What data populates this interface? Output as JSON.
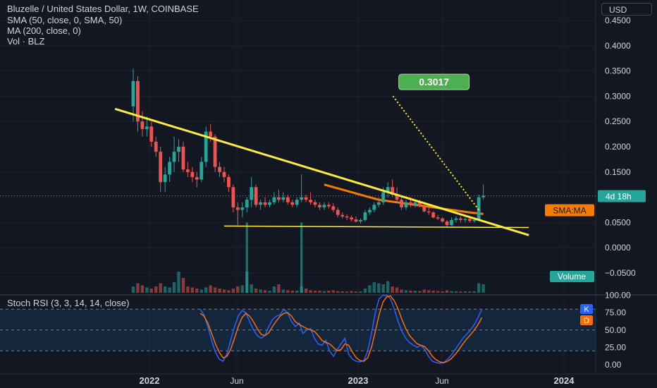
{
  "header": {
    "title": "Bluzelle / United States Dollar, 1W, COINBASE",
    "indicators": [
      "SMA (50, close, 0, SMA, 50)",
      "MA (200, close, 0)",
      "Vol · BLZ"
    ],
    "currency_button": "USD"
  },
  "rsi": {
    "legend": "Stoch RSI (3, 3, 14, 14, close)",
    "k_label": "K",
    "d_label": "D"
  },
  "colors": {
    "background": "#131722",
    "up": "#26a69a",
    "down": "#ef5350",
    "trendline": "#ffeb3b",
    "ma": "#f57c00",
    "target": "#4caf50",
    "k_line": "#2962ff",
    "d_line": "#ff6d00"
  },
  "chart_data": [
    {
      "type": "candlestick",
      "symbol": "Bluzelle / United States Dollar",
      "timeframe": "1W",
      "exchange": "COINBASE",
      "x_ticks": [
        "2022",
        "Jun",
        "2023",
        "Jun",
        "2024"
      ],
      "y_ticks": [
        "0.4500",
        "0.4000",
        "0.3500",
        "0.3000",
        "0.2500",
        "0.2000",
        "0.1500",
        "0.1000",
        "0.0500",
        "0.0000",
        "−0.0500"
      ],
      "ylim": [
        -0.06,
        0.46
      ],
      "price_labels": {
        "countdown": "4d 18h",
        "ma_label": "SMA:MA",
        "volume_label": "Volume"
      },
      "candles": [
        {
          "o": 0.28,
          "h": 0.355,
          "l": 0.25,
          "c": 0.33
        },
        {
          "o": 0.33,
          "h": 0.34,
          "l": 0.23,
          "c": 0.25
        },
        {
          "o": 0.25,
          "h": 0.27,
          "l": 0.22,
          "c": 0.235
        },
        {
          "o": 0.235,
          "h": 0.26,
          "l": 0.22,
          "c": 0.24
        },
        {
          "o": 0.24,
          "h": 0.25,
          "l": 0.2,
          "c": 0.21
        },
        {
          "o": 0.21,
          "h": 0.22,
          "l": 0.18,
          "c": 0.19
        },
        {
          "o": 0.19,
          "h": 0.2,
          "l": 0.11,
          "c": 0.13
        },
        {
          "o": 0.13,
          "h": 0.16,
          "l": 0.11,
          "c": 0.145
        },
        {
          "o": 0.145,
          "h": 0.18,
          "l": 0.13,
          "c": 0.17
        },
        {
          "o": 0.17,
          "h": 0.22,
          "l": 0.15,
          "c": 0.19
        },
        {
          "o": 0.19,
          "h": 0.215,
          "l": 0.17,
          "c": 0.2
        },
        {
          "o": 0.2,
          "h": 0.21,
          "l": 0.15,
          "c": 0.155
        },
        {
          "o": 0.155,
          "h": 0.17,
          "l": 0.14,
          "c": 0.15
        },
        {
          "o": 0.15,
          "h": 0.16,
          "l": 0.13,
          "c": 0.14
        },
        {
          "o": 0.14,
          "h": 0.15,
          "l": 0.12,
          "c": 0.135
        },
        {
          "o": 0.135,
          "h": 0.18,
          "l": 0.13,
          "c": 0.17
        },
        {
          "o": 0.17,
          "h": 0.24,
          "l": 0.16,
          "c": 0.23
        },
        {
          "o": 0.23,
          "h": 0.245,
          "l": 0.21,
          "c": 0.22
        },
        {
          "o": 0.22,
          "h": 0.225,
          "l": 0.15,
          "c": 0.16
        },
        {
          "o": 0.16,
          "h": 0.17,
          "l": 0.14,
          "c": 0.15
        },
        {
          "o": 0.15,
          "h": 0.16,
          "l": 0.13,
          "c": 0.14
        },
        {
          "o": 0.14,
          "h": 0.145,
          "l": 0.11,
          "c": 0.12
        },
        {
          "o": 0.12,
          "h": 0.125,
          "l": 0.07,
          "c": 0.08
        },
        {
          "o": 0.08,
          "h": 0.09,
          "l": 0.045,
          "c": 0.075
        },
        {
          "o": 0.075,
          "h": 0.09,
          "l": 0.06,
          "c": 0.08
        },
        {
          "o": 0.08,
          "h": 0.1,
          "l": 0.07,
          "c": 0.095
        },
        {
          "o": 0.095,
          "h": 0.14,
          "l": 0.08,
          "c": 0.12
        },
        {
          "o": 0.12,
          "h": 0.125,
          "l": 0.08,
          "c": 0.085
        },
        {
          "o": 0.085,
          "h": 0.095,
          "l": 0.075,
          "c": 0.09
        },
        {
          "o": 0.09,
          "h": 0.1,
          "l": 0.08,
          "c": 0.085
        },
        {
          "o": 0.085,
          "h": 0.095,
          "l": 0.08,
          "c": 0.09
        },
        {
          "o": 0.09,
          "h": 0.11,
          "l": 0.085,
          "c": 0.1
        },
        {
          "o": 0.1,
          "h": 0.115,
          "l": 0.09,
          "c": 0.095
        },
        {
          "o": 0.095,
          "h": 0.11,
          "l": 0.09,
          "c": 0.1
        },
        {
          "o": 0.1,
          "h": 0.105,
          "l": 0.085,
          "c": 0.09
        },
        {
          "o": 0.09,
          "h": 0.095,
          "l": 0.08,
          "c": 0.085
        },
        {
          "o": 0.085,
          "h": 0.1,
          "l": 0.08,
          "c": 0.095
        },
        {
          "o": 0.095,
          "h": 0.145,
          "l": 0.09,
          "c": 0.1
        },
        {
          "o": 0.1,
          "h": 0.105,
          "l": 0.09,
          "c": 0.095
        },
        {
          "o": 0.095,
          "h": 0.11,
          "l": 0.085,
          "c": 0.09
        },
        {
          "o": 0.09,
          "h": 0.095,
          "l": 0.08,
          "c": 0.085
        },
        {
          "o": 0.085,
          "h": 0.09,
          "l": 0.075,
          "c": 0.08
        },
        {
          "o": 0.08,
          "h": 0.09,
          "l": 0.075,
          "c": 0.085
        },
        {
          "o": 0.085,
          "h": 0.09,
          "l": 0.078,
          "c": 0.082
        },
        {
          "o": 0.082,
          "h": 0.088,
          "l": 0.07,
          "c": 0.075
        },
        {
          "o": 0.075,
          "h": 0.08,
          "l": 0.06,
          "c": 0.065
        },
        {
          "o": 0.065,
          "h": 0.07,
          "l": 0.058,
          "c": 0.062
        },
        {
          "o": 0.062,
          "h": 0.066,
          "l": 0.055,
          "c": 0.06
        },
        {
          "o": 0.06,
          "h": 0.064,
          "l": 0.052,
          "c": 0.056
        },
        {
          "o": 0.056,
          "h": 0.062,
          "l": 0.05,
          "c": 0.052
        },
        {
          "o": 0.052,
          "h": 0.058,
          "l": 0.048,
          "c": 0.055
        },
        {
          "o": 0.055,
          "h": 0.075,
          "l": 0.052,
          "c": 0.07
        },
        {
          "o": 0.07,
          "h": 0.08,
          "l": 0.065,
          "c": 0.075
        },
        {
          "o": 0.075,
          "h": 0.09,
          "l": 0.07,
          "c": 0.085
        },
        {
          "o": 0.085,
          "h": 0.1,
          "l": 0.08,
          "c": 0.09
        },
        {
          "o": 0.09,
          "h": 0.12,
          "l": 0.085,
          "c": 0.11
        },
        {
          "o": 0.11,
          "h": 0.13,
          "l": 0.1,
          "c": 0.12
        },
        {
          "o": 0.12,
          "h": 0.135,
          "l": 0.1,
          "c": 0.105
        },
        {
          "o": 0.105,
          "h": 0.12,
          "l": 0.09,
          "c": 0.095
        },
        {
          "o": 0.095,
          "h": 0.1,
          "l": 0.075,
          "c": 0.08
        },
        {
          "o": 0.08,
          "h": 0.095,
          "l": 0.075,
          "c": 0.09
        },
        {
          "o": 0.09,
          "h": 0.1,
          "l": 0.08,
          "c": 0.085
        },
        {
          "o": 0.085,
          "h": 0.095,
          "l": 0.08,
          "c": 0.09
        },
        {
          "o": 0.09,
          "h": 0.095,
          "l": 0.08,
          "c": 0.082
        },
        {
          "o": 0.082,
          "h": 0.09,
          "l": 0.07,
          "c": 0.072
        },
        {
          "o": 0.072,
          "h": 0.08,
          "l": 0.065,
          "c": 0.07
        },
        {
          "o": 0.07,
          "h": 0.072,
          "l": 0.058,
          "c": 0.06
        },
        {
          "o": 0.06,
          "h": 0.065,
          "l": 0.055,
          "c": 0.058
        },
        {
          "o": 0.058,
          "h": 0.06,
          "l": 0.05,
          "c": 0.052
        },
        {
          "o": 0.052,
          "h": 0.055,
          "l": 0.04,
          "c": 0.045
        },
        {
          "o": 0.045,
          "h": 0.06,
          "l": 0.043,
          "c": 0.055
        },
        {
          "o": 0.055,
          "h": 0.062,
          "l": 0.05,
          "c": 0.058
        },
        {
          "o": 0.058,
          "h": 0.062,
          "l": 0.05,
          "c": 0.055
        },
        {
          "o": 0.055,
          "h": 0.06,
          "l": 0.05,
          "c": 0.057
        },
        {
          "o": 0.057,
          "h": 0.06,
          "l": 0.05,
          "c": 0.053
        },
        {
          "o": 0.053,
          "h": 0.057,
          "l": 0.05,
          "c": 0.055
        },
        {
          "o": 0.055,
          "h": 0.105,
          "l": 0.053,
          "c": 0.1
        },
        {
          "o": 0.1,
          "h": 0.125,
          "l": 0.095,
          "c": 0.103
        }
      ],
      "volume": [
        0.3,
        0.45,
        0.35,
        0.25,
        0.2,
        0.3,
        0.45,
        0.3,
        0.25,
        0.5,
        1.0,
        0.7,
        0.3,
        0.25,
        0.2,
        0.15,
        0.25,
        0.35,
        0.25,
        0.2,
        0.15,
        0.12,
        0.2,
        0.3,
        0.35,
        1.0,
        0.4,
        0.2,
        0.15,
        0.12,
        0.1,
        0.3,
        0.4,
        0.15,
        0.12,
        0.1,
        0.1,
        0.3,
        0.2,
        0.12,
        0.1,
        0.1,
        0.08,
        0.1,
        0.12,
        0.08,
        0.07,
        0.06,
        0.08,
        0.06,
        0.07,
        0.2,
        0.35,
        0.5,
        0.45,
        0.4,
        0.55,
        0.3,
        0.25,
        0.15,
        0.12,
        0.1,
        0.1,
        0.08,
        0.15,
        0.12,
        0.1,
        0.08,
        0.07,
        0.12,
        0.08,
        0.07,
        0.06,
        0.07,
        0.06,
        0.07,
        0.45,
        0.4
      ],
      "volume_spikes": [
        {
          "index": 25,
          "value": 0.05
        },
        {
          "index": 37,
          "value": 0.05
        }
      ],
      "trendlines": [
        {
          "name": "descending-resistance",
          "from": {
            "i": -4,
            "p": 0.275
          },
          "to": {
            "i": 87,
            "p": 0.025
          },
          "color": "#ffeb3b"
        },
        {
          "name": "horizontal-support",
          "from": {
            "i": 20,
            "p": 0.043
          },
          "to": {
            "i": 87,
            "p": 0.04
          },
          "color": "#ffeb3b"
        },
        {
          "name": "target-projection",
          "from": {
            "i": 76,
            "p": 0.075
          },
          "to": {
            "i": 57,
            "p": 0.3017
          },
          "color": "#ffeb3b",
          "style": "dotted"
        }
      ],
      "target_label": "0.3017",
      "ma_curve": [
        {
          "i": 42,
          "p": 0.125
        },
        {
          "i": 46,
          "p": 0.115
        },
        {
          "i": 50,
          "p": 0.105
        },
        {
          "i": 54,
          "p": 0.095
        },
        {
          "i": 58,
          "p": 0.09
        },
        {
          "i": 62,
          "p": 0.085
        },
        {
          "i": 66,
          "p": 0.08
        },
        {
          "i": 70,
          "p": 0.075
        },
        {
          "i": 74,
          "p": 0.07
        },
        {
          "i": 77,
          "p": 0.067
        }
      ]
    },
    {
      "type": "line",
      "name": "Stoch RSI",
      "y_ticks": [
        "100.00",
        "75.00",
        "50.00",
        "25.00",
        "0.00"
      ],
      "ylim": [
        0,
        100
      ],
      "bands": [
        20,
        80
      ],
      "series": [
        {
          "name": "K",
          "values": [
            80,
            72,
            55,
            35,
            18,
            8,
            5,
            15,
            35,
            55,
            70,
            78,
            75,
            62,
            50,
            42,
            38,
            42,
            55,
            65,
            70,
            72,
            80,
            74,
            62,
            55,
            60,
            45,
            50,
            52,
            38,
            30,
            28,
            35,
            20,
            12,
            22,
            30,
            38,
            15,
            8,
            5,
            4,
            6,
            20,
            45,
            75,
            95,
            100,
            100,
            95,
            80,
            62,
            48,
            38,
            32,
            28,
            25,
            28,
            22,
            12,
            5,
            3,
            2,
            3,
            8,
            14,
            22,
            30,
            38,
            44,
            50,
            58,
            68,
            80
          ]
        },
        {
          "name": "D",
          "values": [
            74,
            70,
            60,
            45,
            30,
            18,
            10,
            12,
            22,
            38,
            55,
            68,
            74,
            70,
            62,
            52,
            44,
            42,
            46,
            55,
            63,
            70,
            74,
            75,
            70,
            62,
            58,
            55,
            52,
            50,
            48,
            42,
            35,
            32,
            30,
            25,
            20,
            22,
            30,
            28,
            18,
            10,
            6,
            5,
            10,
            25,
            48,
            72,
            90,
            98,
            99,
            92,
            80,
            65,
            52,
            42,
            36,
            30,
            28,
            26,
            20,
            12,
            7,
            4,
            3,
            5,
            9,
            15,
            22,
            30,
            37,
            43,
            50,
            58,
            68
          ]
        }
      ]
    }
  ]
}
